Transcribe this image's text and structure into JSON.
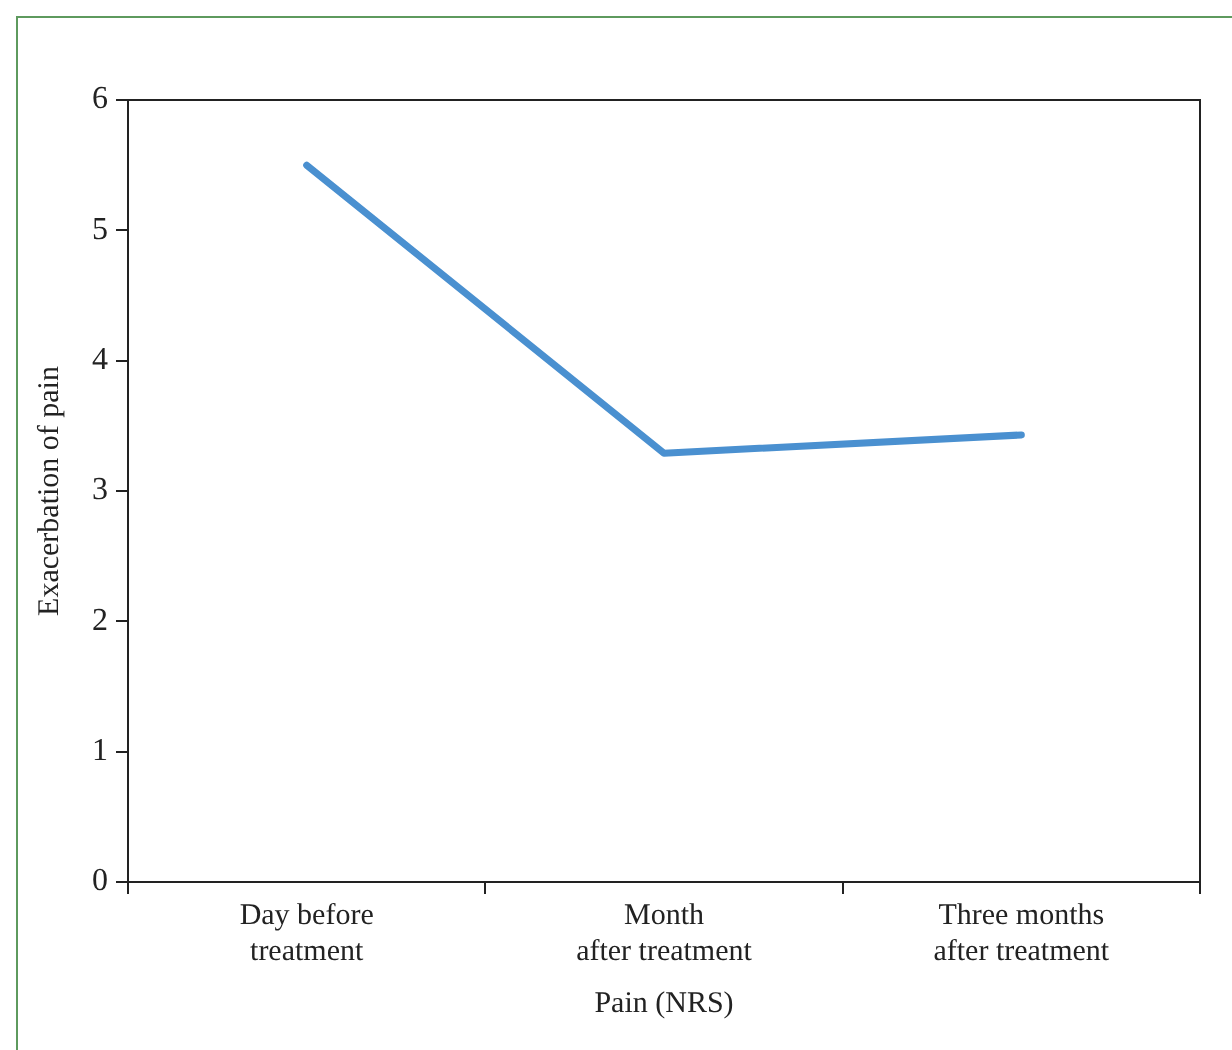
{
  "chart_data": {
    "type": "line",
    "xlabel": "Pain (NRS)",
    "ylabel": "Exacerbation of pain",
    "categories": [
      "Day before\ntreatment",
      "Month\nafter treatment",
      "Three months\nafter treatment"
    ],
    "series": [
      {
        "color": "#4a90d0",
        "values": [
          5.5,
          3.29,
          3.43
        ]
      }
    ],
    "ylim": [
      0,
      6
    ],
    "yticks": [
      0,
      1,
      2,
      3,
      4,
      5,
      6
    ],
    "grid": false,
    "legend": false,
    "marker": "none",
    "line_style": "solid"
  }
}
